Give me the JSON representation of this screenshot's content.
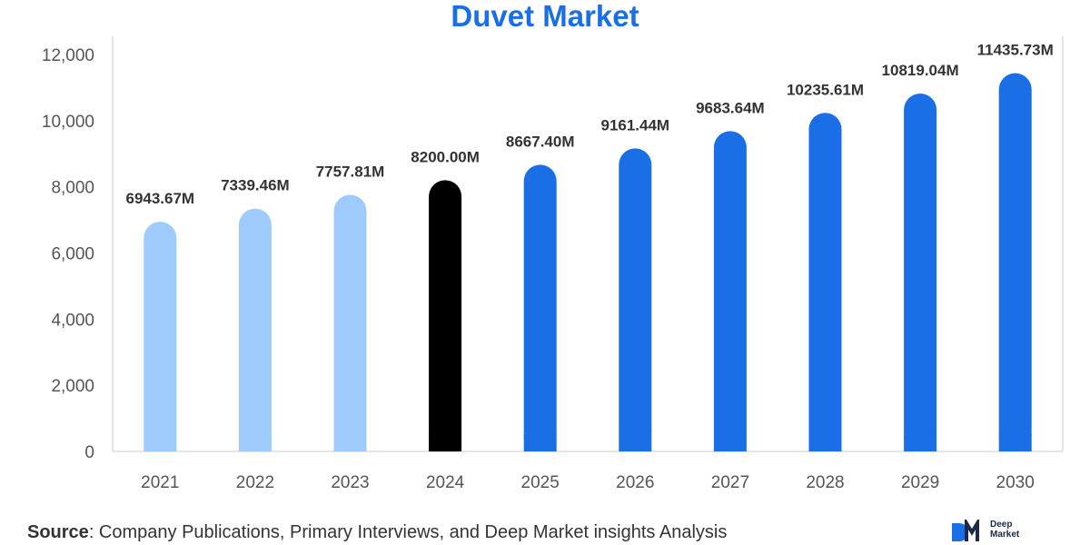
{
  "chart_data": {
    "type": "bar",
    "title": "Duvet Market",
    "categories": [
      "2021",
      "2022",
      "2023",
      "2024",
      "2025",
      "2026",
      "2027",
      "2028",
      "2029",
      "2030"
    ],
    "values": [
      6943.67,
      7339.46,
      7757.81,
      8200.0,
      8667.4,
      9161.44,
      9683.64,
      10235.61,
      10819.04,
      11435.73
    ],
    "data_labels": [
      "6943.67M",
      "7339.46M",
      "7757.81M",
      "8200.00M",
      "8667.40M",
      "9161.44M",
      "9683.64M",
      "10235.61M",
      "10819.04M",
      "11435.73M"
    ],
    "ylim": [
      0,
      12000
    ],
    "yticks": [
      0,
      2000,
      4000,
      6000,
      8000,
      10000,
      12000
    ],
    "ytick_labels": [
      "0",
      "2,000",
      "4,000",
      "6,000",
      "8,000",
      "10,000",
      "12,000"
    ],
    "bar_colors": [
      "#9ecbfb",
      "#9ecbfb",
      "#9ecbfb",
      "#000000",
      "#1a6ee6",
      "#1a6ee6",
      "#1a6ee6",
      "#1a6ee6",
      "#1a6ee6",
      "#1a6ee6"
    ],
    "grid": false,
    "xlabel": "",
    "ylabel": ""
  },
  "footer": {
    "source_label": "Source",
    "source_text": ": Company Publications, Primary Interviews, and Deep Market insights Analysis"
  },
  "logo": {
    "line1": "Deep",
    "line2": "Market"
  },
  "colors": {
    "title": "#1a6ee6",
    "axis": "#cccccc"
  }
}
